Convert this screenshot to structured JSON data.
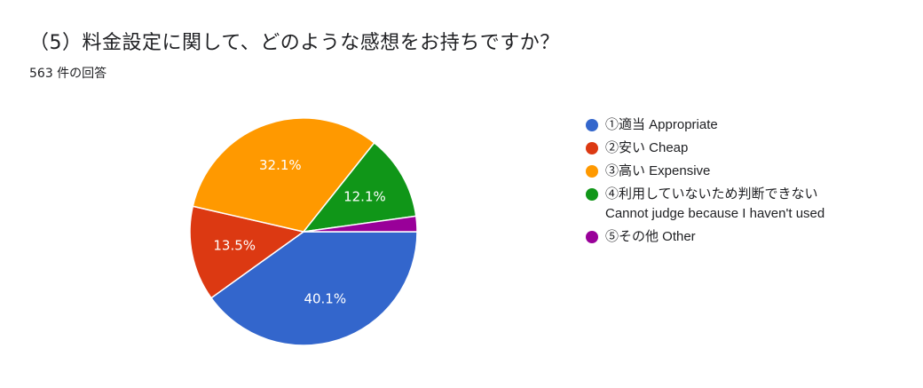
{
  "title": "（5）料金設定に関して、どのような感想をお持ちですか？",
  "response_count": "563 件の回答",
  "chart_data": {
    "type": "pie",
    "title": "（5）料金設定に関して、どのような感想をお持ちですか？",
    "slices": [
      {
        "label": "①適当 Appropriate",
        "value": 40.1,
        "color": "#3366cc"
      },
      {
        "label": "②安い Cheap",
        "value": 13.5,
        "color": "#dc3912"
      },
      {
        "label": "③高い Expensive",
        "value": 32.1,
        "color": "#ff9900"
      },
      {
        "label": "④利用していないため判断できない\nCannot judge because I haven't used",
        "value": 12.1,
        "color": "#109618"
      },
      {
        "label": "⑤その他 Other",
        "value": 2.2,
        "color": "#990099"
      }
    ],
    "data_labels": [
      "40.1%",
      "13.5%",
      "32.1%",
      "12.1%",
      ""
    ],
    "legend_position": "right"
  }
}
